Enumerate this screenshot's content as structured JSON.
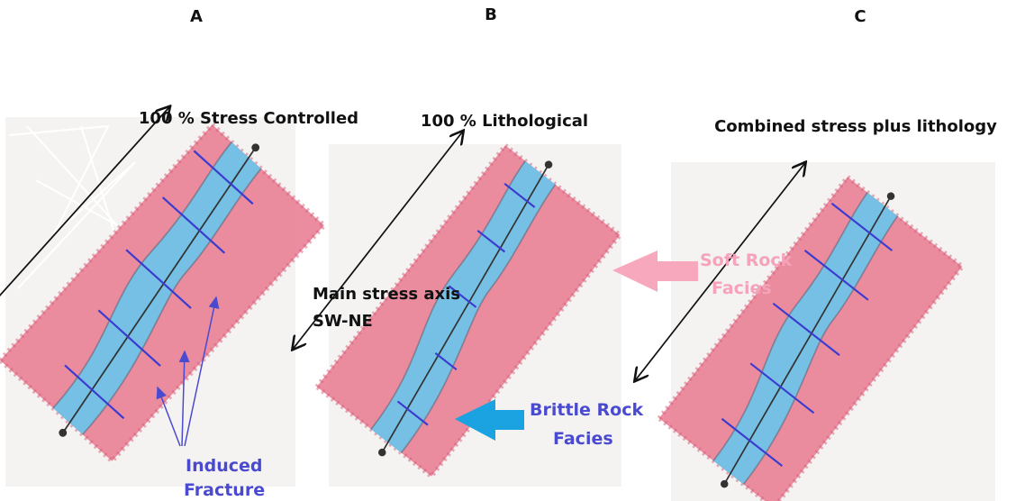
{
  "labels": {
    "a": "A",
    "b": "B",
    "c": "C"
  },
  "titles": [
    "100 % Stress Controlled",
    "100 % Lithological",
    "Combined stress plus lithology"
  ],
  "annotations": {
    "main_stress_axis": [
      "Main stress axis",
      "SW-NE"
    ],
    "soft_rock": [
      "Soft Rock",
      "Facies"
    ],
    "brittle_rock": [
      "Brittle Rock",
      "Facies"
    ],
    "induced_fracture": [
      "Induced",
      "Fracture"
    ]
  }
}
